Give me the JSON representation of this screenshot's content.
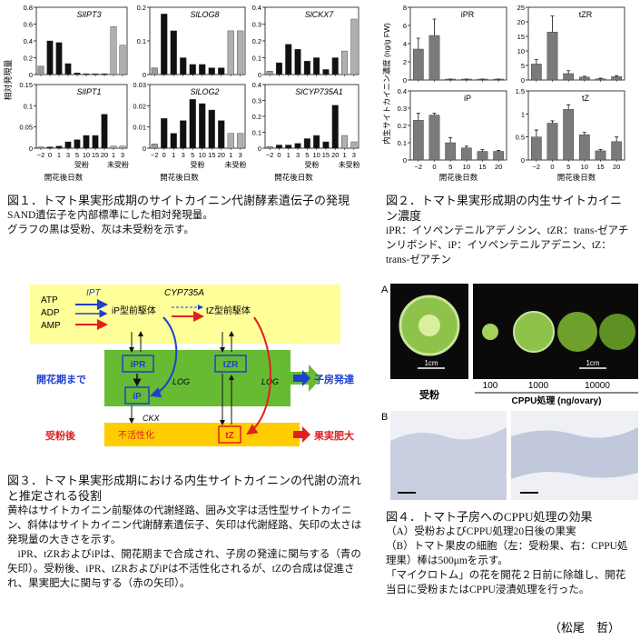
{
  "figure1": {
    "y_label": "相対発現量",
    "x_label": "開花後日数",
    "group_labels": [
      "受粉",
      "未受粉"
    ],
    "categories": [
      "−2",
      "0",
      "1",
      "3",
      "5",
      "10",
      "15",
      "20",
      "1",
      "3"
    ],
    "colors": [
      "#9a9a9a",
      "#111111",
      "#111111",
      "#111111",
      "#111111",
      "#111111",
      "#111111",
      "#111111",
      "#b0b0b0",
      "#b0b0b0"
    ],
    "panels": [
      {
        "title": "SlIPT3",
        "values": [
          0.1,
          0.4,
          0.38,
          0.13,
          0.02,
          0.01,
          0.01,
          0.01,
          0.57,
          0.35
        ],
        "ylim": [
          0,
          0.8
        ],
        "yticks": [
          0,
          0.2,
          0.4,
          0.6,
          0.8
        ]
      },
      {
        "title": "SlLOG8",
        "values": [
          0.02,
          0.18,
          0.13,
          0.05,
          0.03,
          0.03,
          0.02,
          0.02,
          0.13,
          0.13
        ],
        "ylim": [
          0,
          0.2
        ],
        "yticks": [
          0,
          0.1,
          0.2
        ]
      },
      {
        "title": "SlCKX7",
        "values": [
          0.02,
          0.07,
          0.18,
          0.15,
          0.08,
          0.1,
          0.03,
          0.1,
          0.14,
          0.33
        ],
        "ylim": [
          0,
          0.4
        ],
        "yticks": [
          0,
          0.1,
          0.2,
          0.3,
          0.4
        ]
      },
      {
        "title": "SlIPT1",
        "values": [
          0.003,
          0.003,
          0.005,
          0.015,
          0.02,
          0.03,
          0.03,
          0.08,
          0.005,
          0.005
        ],
        "ylim": [
          0,
          0.15
        ],
        "yticks": [
          0,
          0.05,
          0.1,
          0.15
        ]
      },
      {
        "title": "SlLOG2",
        "values": [
          0.002,
          0.014,
          0.007,
          0.013,
          0.023,
          0.021,
          0.018,
          0.013,
          0.007,
          0.007
        ],
        "ylim": [
          0,
          0.03
        ],
        "yticks": [
          0,
          0.01,
          0.02,
          0.03
        ]
      },
      {
        "title": "SlCYP735A1",
        "values": [
          0.01,
          0.02,
          0.02,
          0.03,
          0.06,
          0.08,
          0.04,
          0.27,
          0.08,
          0.04
        ],
        "ylim": [
          0,
          0.4
        ],
        "yticks": [
          0,
          0.1,
          0.2,
          0.3,
          0.4
        ]
      }
    ],
    "caption": {
      "title": "図１．トマト果実形成期のサイトカイニン代謝酵素遺伝子の発現",
      "lines": [
        "SAND遺伝子を内部標準にした相対発現量。",
        "グラフの黒は受粉、灰は未受粉を示す。"
      ]
    }
  },
  "figure2": {
    "y_label": "内生サイトカイニン濃度 (ng/g FW)",
    "x_label": "開花後日数",
    "categories": [
      "−2",
      "0",
      "5",
      "10",
      "15",
      "20"
    ],
    "color": "#7a7a7a",
    "panels": [
      {
        "title": "iPR",
        "values": [
          3.4,
          4.9,
          0.1,
          0.1,
          0.1,
          0.1
        ],
        "errors": [
          1.2,
          1.8,
          0,
          0,
          0,
          0
        ],
        "ylim": [
          0,
          8
        ],
        "yticks": [
          0,
          2,
          4,
          6,
          8
        ]
      },
      {
        "title": "tZR",
        "values": [
          5.5,
          16.5,
          2.2,
          1,
          0.4,
          1.2
        ],
        "errors": [
          1.5,
          5.5,
          1,
          0.3,
          0.2,
          0.3
        ],
        "ylim": [
          0,
          25
        ],
        "yticks": [
          0,
          5,
          10,
          15,
          20,
          25
        ]
      },
      {
        "title": "iP",
        "values": [
          0.23,
          0.26,
          0.1,
          0.07,
          0.05,
          0.05
        ],
        "errors": [
          0.04,
          0.01,
          0.03,
          0.01,
          0.01,
          0.005
        ],
        "ylim": [
          0,
          0.4
        ],
        "yticks": [
          0,
          0.1,
          0.2,
          0.3,
          0.4
        ]
      },
      {
        "title": "tZ",
        "values": [
          0.5,
          0.8,
          1.1,
          0.55,
          0.2,
          0.4
        ],
        "errors": [
          0.15,
          0.05,
          0.1,
          0.05,
          0.03,
          0.1
        ],
        "ylim": [
          0,
          1.5
        ],
        "yticks": [
          0,
          0.5,
          1,
          1.5
        ]
      }
    ],
    "caption": {
      "title": "図２．トマト果実形成期の内生サイトカイニン濃度",
      "note": "iPR：イソペンテニルアデノシン、tZR：trans-ゼアチンリボシド、iP：イソペンテニルアデニン、tZ：trans-ゼアチン"
    }
  },
  "figure3": {
    "nucleotides": [
      "ATP",
      "ADP",
      "AMP"
    ],
    "enzymes": {
      "ipt": "IPT",
      "cyp": "CYP735A",
      "log": "LOG",
      "ckx": "CKX"
    },
    "nodes": {
      "ip_precursor": "iP型前駆体",
      "tz_precursor": "tZ型前駆体",
      "ipr": "iPR",
      "tzr": "tZR",
      "ip": "iP",
      "tz": "tZ",
      "inactivation": "不活性化"
    },
    "stages": {
      "before": "開花期まで",
      "after": "受粉後"
    },
    "outcomes": {
      "ovary": "子房発達",
      "fruit": "果実肥大"
    },
    "caption": {
      "title": "図３．トマト果実形成期における内生サイトカイニンの代謝の流れと推定される役割",
      "body": [
        "黄枠はサイトカイニン前駆体の代謝経路、囲み文字は活性型サイトカイニン、斜体はサイトカイニン代謝酵素遺伝子、矢印は代謝経路、矢印の太さは発現量の大きさを示す。",
        "　iPR、tZRおよびiPは、開花期まで合成され、子房の発達に関与する（青の矢印）。受粉後、iPR、tZRおよびiPは不活性化されるが、tZの合成は促進され、果実肥大に関与する（赤の矢印）。"
      ]
    }
  },
  "figure4": {
    "panel_a": "A",
    "panel_b": "B",
    "scale": "1cm",
    "pollinated": "受粉",
    "doses": [
      "100",
      "1000",
      "10000"
    ],
    "treatment": "CPPU処理 (ng/ovary)",
    "caption": {
      "title": "図４．トマト子房へのCPPU処理の効果",
      "lines": [
        "（A）受粉およびCPPU処理20日後の果実",
        "（B）トマト果皮の細胞（左：受粉果、右：CPPU処理果）棒は500μmを示す。",
        "「マイクロトム」の花を開花２日前に除雄し、開花当日に受粉またはCPPU浸漬処理を行った。"
      ]
    }
  },
  "author": "（松尾　哲）"
}
